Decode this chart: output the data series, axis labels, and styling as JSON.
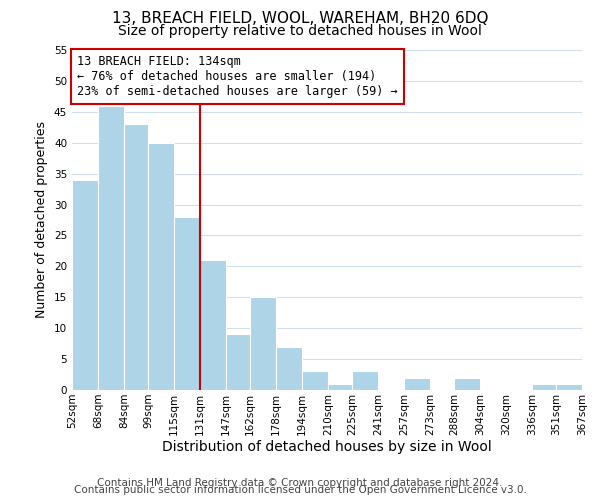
{
  "title": "13, BREACH FIELD, WOOL, WAREHAM, BH20 6DQ",
  "subtitle": "Size of property relative to detached houses in Wool",
  "xlabel": "Distribution of detached houses by size in Wool",
  "ylabel": "Number of detached properties",
  "bar_color": "#aed4e8",
  "bin_edges": [
    52,
    68,
    84,
    99,
    115,
    131,
    147,
    162,
    178,
    194,
    210,
    225,
    241,
    257,
    273,
    288,
    304,
    320,
    336,
    351,
    367
  ],
  "bin_labels": [
    "52sqm",
    "68sqm",
    "84sqm",
    "99sqm",
    "115sqm",
    "131sqm",
    "147sqm",
    "162sqm",
    "178sqm",
    "194sqm",
    "210sqm",
    "225sqm",
    "241sqm",
    "257sqm",
    "273sqm",
    "288sqm",
    "304sqm",
    "320sqm",
    "336sqm",
    "351sqm",
    "367sqm"
  ],
  "counts": [
    34,
    46,
    43,
    40,
    28,
    21,
    9,
    15,
    7,
    3,
    1,
    3,
    0,
    2,
    0,
    2,
    0,
    0,
    1,
    1
  ],
  "ylim": [
    0,
    55
  ],
  "yticks": [
    0,
    5,
    10,
    15,
    20,
    25,
    30,
    35,
    40,
    45,
    50,
    55
  ],
  "property_line_x": 131,
  "property_line_color": "#cc0000",
  "annotation_line1": "13 BREACH FIELD: 134sqm",
  "annotation_line2": "← 76% of detached houses are smaller (194)",
  "annotation_line3": "23% of semi-detached houses are larger (59) →",
  "annotation_box_color": "#ffffff",
  "annotation_box_edge_color": "#cc0000",
  "footer_line1": "Contains HM Land Registry data © Crown copyright and database right 2024.",
  "footer_line2": "Contains public sector information licensed under the Open Government Licence v3.0.",
  "background_color": "#ffffff",
  "grid_color": "#d0dff0",
  "title_fontsize": 11,
  "subtitle_fontsize": 10,
  "xlabel_fontsize": 10,
  "ylabel_fontsize": 9,
  "tick_fontsize": 7.5,
  "annotation_fontsize": 8.5,
  "footer_fontsize": 7.5
}
